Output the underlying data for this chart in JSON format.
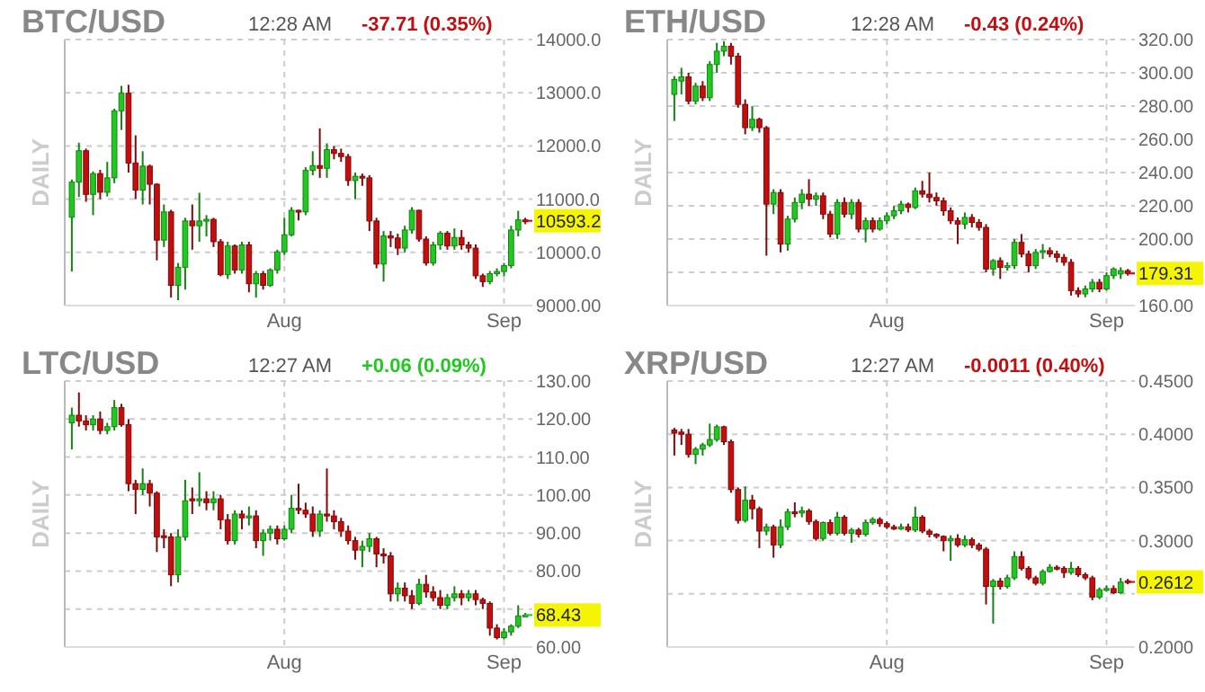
{
  "chart_data": [
    {
      "type": "candlestick",
      "title": "BTC/USD",
      "subtitle": "12:28 AM",
      "ylabel": "DAILY",
      "annotations": [
        "-37.71 (0.35%)",
        {
          "text": "10593.2",
          "x": "--09-04",
          "y": 10593.2
        }
      ],
      "grid": true,
      "x": [
        "--07-02",
        "--07-03",
        "--07-04",
        "--07-05",
        "--07-06",
        "--07-07",
        "--07-08",
        "--07-09",
        "--07-10",
        "--07-11",
        "--07-12",
        "--07-13",
        "--07-14",
        "--07-15",
        "--07-16",
        "--07-17",
        "--07-18",
        "--07-19",
        "--07-20",
        "--07-21",
        "--07-22",
        "--07-23",
        "--07-24",
        "--07-25",
        "--07-26",
        "--07-27",
        "--07-28",
        "--07-29",
        "--07-30",
        "--07-31",
        "--08-01",
        "--08-02",
        "--08-03",
        "--08-04",
        "--08-05",
        "--08-06",
        "--08-07",
        "--08-08",
        "--08-09",
        "--08-10",
        "--08-11",
        "--08-12",
        "--08-13",
        "--08-14",
        "--08-15",
        "--08-16",
        "--08-17",
        "--08-18",
        "--08-19",
        "--08-20",
        "--08-21",
        "--08-22",
        "--08-23",
        "--08-24",
        "--08-25",
        "--08-26",
        "--08-27",
        "--08-28",
        "--08-29",
        "--08-30",
        "--08-31",
        "--09-01",
        "--09-02",
        "--09-03",
        "--09-04"
      ],
      "xlim": [
        "--07-01",
        "--09-05"
      ],
      "xticks": [
        {
          "value": "--08-01",
          "label": "Aug"
        },
        {
          "value": "--09-01",
          "label": "Sep"
        }
      ],
      "ylim": [
        9000,
        14000
      ],
      "yticks": [
        {
          "value": 9000,
          "label": "9000.00"
        },
        {
          "value": 10000,
          "label": "10000.0"
        },
        {
          "value": 11000,
          "label": "11000.0"
        },
        {
          "value": 12000,
          "label": "12000.0"
        },
        {
          "value": 13000,
          "label": "13000.0"
        },
        {
          "value": 14000,
          "label": "14000.0"
        }
      ],
      "ohlc": [
        [
          10660,
          11370,
          9640,
          11320
        ],
        [
          11320,
          12060,
          11040,
          11910
        ],
        [
          11910,
          11950,
          10950,
          11090
        ],
        [
          11090,
          11520,
          10700,
          11480
        ],
        [
          11480,
          11550,
          11000,
          11130
        ],
        [
          11130,
          11700,
          11050,
          11400
        ],
        [
          11400,
          12700,
          11300,
          12660
        ],
        [
          12660,
          13130,
          12300,
          12990
        ],
        [
          12990,
          13150,
          11500,
          11680
        ],
        [
          11680,
          12200,
          11000,
          11170
        ],
        [
          11170,
          11900,
          10900,
          11620
        ],
        [
          11620,
          11650,
          10900,
          11280
        ],
        [
          11280,
          11300,
          9850,
          10230
        ],
        [
          10230,
          10900,
          10100,
          10760
        ],
        [
          10760,
          10800,
          9150,
          9380
        ],
        [
          9380,
          9800,
          9100,
          9720
        ],
        [
          9720,
          10650,
          9300,
          10590
        ],
        [
          10590,
          10900,
          10050,
          10500
        ],
        [
          10500,
          11120,
          10200,
          10590
        ],
        [
          10590,
          10700,
          10300,
          10620
        ],
        [
          10620,
          10650,
          10100,
          10200
        ],
        [
          10200,
          10250,
          9550,
          9580
        ],
        [
          9580,
          10200,
          9500,
          10120
        ],
        [
          10120,
          10150,
          9600,
          9670
        ],
        [
          9670,
          10200,
          9600,
          10140
        ],
        [
          10140,
          10200,
          9250,
          9410
        ],
        [
          9410,
          9650,
          9150,
          9600
        ],
        [
          9600,
          9650,
          9300,
          9380
        ],
        [
          9380,
          9700,
          9350,
          9670
        ],
        [
          9670,
          10050,
          9600,
          10010
        ],
        [
          10010,
          10650,
          9950,
          10330
        ],
        [
          10330,
          10850,
          10300,
          10790
        ],
        [
          10790,
          10800,
          10600,
          10760
        ],
        [
          10760,
          11600,
          10700,
          11540
        ],
        [
          11540,
          11900,
          11450,
          11630
        ],
        [
          11630,
          12330,
          11400,
          11580
        ],
        [
          11580,
          12050,
          11400,
          11930
        ],
        [
          11930,
          12000,
          11750,
          11860
        ],
        [
          11860,
          11950,
          11700,
          11800
        ],
        [
          11800,
          11850,
          11250,
          11350
        ],
        [
          11350,
          11500,
          11000,
          11430
        ],
        [
          11430,
          11480,
          11250,
          11400
        ],
        [
          11400,
          11450,
          10400,
          10590
        ],
        [
          10590,
          10650,
          9700,
          9780
        ],
        [
          9780,
          10400,
          9450,
          10310
        ],
        [
          10310,
          10400,
          10100,
          10270
        ],
        [
          10270,
          10350,
          9950,
          10080
        ],
        [
          10080,
          10500,
          10000,
          10420
        ],
        [
          10420,
          10850,
          10350,
          10790
        ],
        [
          10790,
          10800,
          10200,
          10250
        ],
        [
          10250,
          10300,
          9750,
          9800
        ],
        [
          9800,
          10200,
          9750,
          10140
        ],
        [
          10140,
          10400,
          10050,
          10360
        ],
        [
          10360,
          10400,
          10050,
          10120
        ],
        [
          10120,
          10450,
          10050,
          10280
        ],
        [
          10280,
          10420,
          10050,
          10140
        ],
        [
          10140,
          10200,
          10000,
          10080
        ],
        [
          10080,
          10150,
          9500,
          9560
        ],
        [
          9560,
          9600,
          9350,
          9450
        ],
        [
          9450,
          9650,
          9400,
          9600
        ],
        [
          9600,
          9700,
          9550,
          9640
        ],
        [
          9640,
          9800,
          9550,
          9750
        ],
        [
          9750,
          10500,
          9700,
          10420
        ],
        [
          10420,
          10780,
          10300,
          10610
        ],
        [
          10610,
          10650,
          10530,
          10593.2
        ]
      ],
      "colors": [
        "#1fc91f",
        "#1fc91f",
        "#c40e0e",
        "#1fc91f",
        "#c40e0e",
        "#1fc91f",
        "#1fc91f",
        "#1fc91f",
        "#c40e0e",
        "#c40e0e",
        "#1fc91f",
        "#c40e0e",
        "#c40e0e",
        "#1fc91f",
        "#c40e0e",
        "#1fc91f",
        "#1fc91f",
        "#c40e0e",
        "#1fc91f",
        "#1fc91f",
        "#c40e0e",
        "#c40e0e",
        "#1fc91f",
        "#c40e0e",
        "#1fc91f",
        "#c40e0e",
        "#1fc91f",
        "#c40e0e",
        "#1fc91f",
        "#1fc91f",
        "#1fc91f",
        "#1fc91f",
        "#c40e0e",
        "#1fc91f",
        "#1fc91f",
        "#c40e0e",
        "#1fc91f",
        "#c40e0e",
        "#c40e0e",
        "#c40e0e",
        "#1fc91f",
        "#c40e0e",
        "#c40e0e",
        "#c40e0e",
        "#1fc91f",
        "#c40e0e",
        "#c40e0e",
        "#1fc91f",
        "#1fc91f",
        "#c40e0e",
        "#c40e0e",
        "#1fc91f",
        "#1fc91f",
        "#c40e0e",
        "#1fc91f",
        "#c40e0e",
        "#c40e0e",
        "#c40e0e",
        "#c40e0e",
        "#1fc91f",
        "#1fc91f",
        "#1fc91f",
        "#1fc91f",
        "#1fc91f",
        "#c40e0e"
      ]
    },
    {
      "type": "candlestick",
      "title": "ETH/USD",
      "subtitle": "12:28 AM",
      "ylabel": "DAILY",
      "annotations": [
        "-0.43 (0.24%)",
        {
          "text": "179.31",
          "x": "--09-04",
          "y": 179.31
        }
      ],
      "grid": true,
      "x": [
        "--07-02",
        "--07-03",
        "--07-04",
        "--07-05",
        "--07-06",
        "--07-07",
        "--07-08",
        "--07-09",
        "--07-10",
        "--07-11",
        "--07-12",
        "--07-13",
        "--07-14",
        "--07-15",
        "--07-16",
        "--07-17",
        "--07-18",
        "--07-19",
        "--07-20",
        "--07-21",
        "--07-22",
        "--07-23",
        "--07-24",
        "--07-25",
        "--07-26",
        "--07-27",
        "--07-28",
        "--07-29",
        "--07-30",
        "--07-31",
        "--08-01",
        "--08-02",
        "--08-03",
        "--08-04",
        "--08-05",
        "--08-06",
        "--08-07",
        "--08-08",
        "--08-09",
        "--08-10",
        "--08-11",
        "--08-12",
        "--08-13",
        "--08-14",
        "--08-15",
        "--08-16",
        "--08-17",
        "--08-18",
        "--08-19",
        "--08-20",
        "--08-21",
        "--08-22",
        "--08-23",
        "--08-24",
        "--08-25",
        "--08-26",
        "--08-27",
        "--08-28",
        "--08-29",
        "--08-30",
        "--08-31",
        "--09-01",
        "--09-02",
        "--09-03",
        "--09-04"
      ],
      "xlim": [
        "--07-01",
        "--09-05"
      ],
      "xticks": [
        {
          "value": "--08-01",
          "label": "Aug"
        },
        {
          "value": "--09-01",
          "label": "Sep"
        }
      ],
      "ylim": [
        160,
        320
      ],
      "yticks": [
        {
          "value": 160,
          "label": "160.00"
        },
        {
          "value": 180,
          "label": null
        },
        {
          "value": 200,
          "label": "200.00"
        },
        {
          "value": 220,
          "label": "220.00"
        },
        {
          "value": 240,
          "label": "240.00"
        },
        {
          "value": 260,
          "label": "260.00"
        },
        {
          "value": 280,
          "label": "280.00"
        },
        {
          "value": 300,
          "label": "300.00"
        },
        {
          "value": 320,
          "label": "320.00"
        }
      ],
      "ohlc": [
        [
          287,
          298,
          271,
          296
        ],
        [
          295,
          303,
          287,
          297.5
        ],
        [
          297.5,
          300,
          281,
          283
        ],
        [
          283,
          294,
          281,
          292
        ],
        [
          292,
          295,
          283,
          285
        ],
        [
          285,
          307,
          283,
          305
        ],
        [
          305,
          318,
          300,
          313
        ],
        [
          313,
          319,
          310,
          316
        ],
        [
          316,
          318,
          305,
          310
        ],
        [
          310,
          312,
          279,
          281
        ],
        [
          281,
          284,
          263,
          267
        ],
        [
          267,
          280,
          265,
          272
        ],
        [
          272,
          273,
          264,
          267
        ],
        [
          267,
          268,
          190,
          221
        ],
        [
          221,
          230,
          215,
          228
        ],
        [
          228,
          230,
          192,
          197
        ],
        [
          197,
          214,
          193,
          212
        ],
        [
          212,
          225,
          210,
          222
        ],
        [
          222,
          230,
          218,
          227
        ],
        [
          227,
          236,
          220,
          224
        ],
        [
          224,
          228,
          220,
          226
        ],
        [
          226,
          228,
          212,
          215
        ],
        [
          215,
          217,
          201,
          203
        ],
        [
          203,
          224,
          200,
          222
        ],
        [
          222,
          225,
          213,
          215
        ],
        [
          215,
          224,
          212,
          222
        ],
        [
          222,
          224,
          204,
          206
        ],
        [
          206,
          213,
          198,
          211
        ],
        [
          211,
          213,
          204,
          206
        ],
        [
          206,
          213,
          205,
          211
        ],
        [
          211,
          216,
          209,
          214
        ],
        [
          214,
          220,
          212,
          217
        ],
        [
          217,
          223,
          215,
          221
        ],
        [
          221,
          222,
          216,
          219
        ],
        [
          219,
          231,
          218,
          229
        ],
        [
          229,
          235,
          225,
          227
        ],
        [
          227,
          240,
          222,
          225
        ],
        [
          225,
          228,
          220,
          223
        ],
        [
          223,
          225,
          214,
          217
        ],
        [
          217,
          219,
          209,
          211
        ],
        [
          211,
          213,
          197,
          209
        ],
        [
          209,
          216,
          206,
          213
        ],
        [
          213,
          215,
          207,
          210
        ],
        [
          210,
          212,
          205,
          207
        ],
        [
          207,
          209,
          180,
          182
        ],
        [
          182,
          188,
          178,
          187
        ],
        [
          187,
          189,
          176,
          183
        ],
        [
          183,
          186,
          181,
          184
        ],
        [
          184,
          200,
          182,
          198
        ],
        [
          198,
          203,
          189,
          191
        ],
        [
          191,
          193,
          180,
          184
        ],
        [
          184,
          194,
          182,
          192
        ],
        [
          192,
          197,
          188,
          193
        ],
        [
          193,
          195,
          189,
          191
        ],
        [
          191,
          193,
          186,
          189
        ],
        [
          189,
          191,
          184,
          186
        ],
        [
          186,
          188,
          166,
          169
        ],
        [
          169,
          171,
          165,
          167
        ],
        [
          167,
          172,
          165,
          170
        ],
        [
          170,
          176,
          168,
          174
        ],
        [
          174,
          176,
          168,
          170
        ],
        [
          170,
          180,
          169,
          178
        ],
        [
          178,
          183,
          176,
          182
        ],
        [
          179,
          183,
          176,
          181
        ],
        [
          181,
          182,
          178,
          179.31
        ]
      ],
      "colors": [
        "#1fc91f",
        "#1fc91f",
        "#c40e0e",
        "#1fc91f",
        "#c40e0e",
        "#1fc91f",
        "#1fc91f",
        "#1fc91f",
        "#c40e0e",
        "#c40e0e",
        "#c40e0e",
        "#1fc91f",
        "#c40e0e",
        "#c40e0e",
        "#1fc91f",
        "#c40e0e",
        "#1fc91f",
        "#1fc91f",
        "#1fc91f",
        "#c40e0e",
        "#1fc91f",
        "#c40e0e",
        "#c40e0e",
        "#1fc91f",
        "#c40e0e",
        "#1fc91f",
        "#c40e0e",
        "#1fc91f",
        "#c40e0e",
        "#1fc91f",
        "#1fc91f",
        "#1fc91f",
        "#1fc91f",
        "#c40e0e",
        "#1fc91f",
        "#c40e0e",
        "#c40e0e",
        "#c40e0e",
        "#c40e0e",
        "#c40e0e",
        "#c40e0e",
        "#1fc91f",
        "#c40e0e",
        "#c40e0e",
        "#c40e0e",
        "#1fc91f",
        "#c40e0e",
        "#1fc91f",
        "#1fc91f",
        "#c40e0e",
        "#c40e0e",
        "#1fc91f",
        "#1fc91f",
        "#c40e0e",
        "#c40e0e",
        "#c40e0e",
        "#c40e0e",
        "#c40e0e",
        "#1fc91f",
        "#1fc91f",
        "#c40e0e",
        "#1fc91f",
        "#1fc91f",
        "#1fc91f",
        "#c40e0e"
      ]
    },
    {
      "type": "candlestick",
      "title": "LTC/USD",
      "subtitle": "12:27 AM",
      "ylabel": "DAILY",
      "annotations": [
        "+0.06 (0.09%)",
        {
          "text": "68.43",
          "x": "--09-04",
          "y": 68.43
        }
      ],
      "grid": true,
      "x": [
        "--07-02",
        "--07-03",
        "--07-04",
        "--07-05",
        "--07-06",
        "--07-07",
        "--07-08",
        "--07-09",
        "--07-10",
        "--07-11",
        "--07-12",
        "--07-13",
        "--07-14",
        "--07-15",
        "--07-16",
        "--07-17",
        "--07-18",
        "--07-19",
        "--07-20",
        "--07-21",
        "--07-22",
        "--07-23",
        "--07-24",
        "--07-25",
        "--07-26",
        "--07-27",
        "--07-28",
        "--07-29",
        "--07-30",
        "--07-31",
        "--08-01",
        "--08-02",
        "--08-03",
        "--08-04",
        "--08-05",
        "--08-06",
        "--08-07",
        "--08-08",
        "--08-09",
        "--08-10",
        "--08-11",
        "--08-12",
        "--08-13",
        "--08-14",
        "--08-15",
        "--08-16",
        "--08-17",
        "--08-18",
        "--08-19",
        "--08-20",
        "--08-21",
        "--08-22",
        "--08-23",
        "--08-24",
        "--08-25",
        "--08-26",
        "--08-27",
        "--08-28",
        "--08-29",
        "--08-30",
        "--08-31",
        "--09-01",
        "--09-02",
        "--09-03",
        "--09-04"
      ],
      "xlim": [
        "--07-01",
        "--09-05"
      ],
      "xticks": [
        {
          "value": "--08-01",
          "label": "Aug"
        },
        {
          "value": "--09-01",
          "label": "Sep"
        }
      ],
      "ylim": [
        60,
        130
      ],
      "yticks": [
        {
          "value": 60,
          "label": "60.00"
        },
        {
          "value": 70,
          "label": null
        },
        {
          "value": 80,
          "label": "80.00"
        },
        {
          "value": 90,
          "label": "90.00"
        },
        {
          "value": 100,
          "label": "100.00"
        },
        {
          "value": 110,
          "label": "110.00"
        },
        {
          "value": 120,
          "label": "120.00"
        },
        {
          "value": 130,
          "label": "130.00"
        }
      ],
      "ohlc": [
        [
          119,
          123,
          112,
          121
        ],
        [
          121,
          127,
          118,
          119.5
        ],
        [
          119.5,
          121,
          117,
          118.5
        ],
        [
          118.5,
          121,
          117,
          120
        ],
        [
          120,
          122,
          116,
          117
        ],
        [
          117,
          119,
          116,
          118
        ],
        [
          118,
          125,
          117,
          123
        ],
        [
          123,
          124,
          118,
          118.5
        ],
        [
          118.5,
          120,
          101,
          103
        ],
        [
          103,
          104,
          95,
          101.5
        ],
        [
          101.5,
          107,
          100,
          103
        ],
        [
          103,
          104,
          97,
          100.5
        ],
        [
          100.5,
          101,
          85,
          89
        ],
        [
          89.3,
          91,
          86,
          88.8
        ],
        [
          89,
          90,
          76,
          79
        ],
        [
          79,
          91,
          77,
          89
        ],
        [
          89,
          104,
          88,
          98.5
        ],
        [
          99,
          102,
          95,
          98.5
        ],
        [
          98.5,
          106,
          97,
          99
        ],
        [
          99,
          101,
          96,
          98
        ],
        [
          98,
          101,
          96,
          99
        ],
        [
          99,
          100,
          91,
          93.5
        ],
        [
          93.5,
          95,
          87,
          88
        ],
        [
          88,
          96,
          87,
          95
        ],
        [
          95,
          96,
          91,
          94
        ],
        [
          94,
          97,
          92,
          94.5
        ],
        [
          94.5,
          96,
          86,
          88
        ],
        [
          88,
          91,
          84,
          90
        ],
        [
          90,
          92,
          88,
          91
        ],
        [
          91,
          92,
          87,
          88.5
        ],
        [
          88.5,
          92,
          88,
          91
        ],
        [
          91,
          100,
          90,
          96.5
        ],
        [
          96.5,
          103,
          95,
          96
        ],
        [
          96,
          98,
          94,
          95
        ],
        [
          95,
          97,
          89,
          90.5
        ],
        [
          90.5,
          96,
          89,
          95
        ],
        [
          95,
          107,
          93,
          94.5
        ],
        [
          94.5,
          96,
          91,
          93
        ],
        [
          93,
          94,
          89,
          90.5
        ],
        [
          90.5,
          92,
          87,
          88
        ],
        [
          88,
          89,
          83,
          85.5
        ],
        [
          85.5,
          88,
          81,
          86.5
        ],
        [
          86.5,
          90,
          85,
          88.5
        ],
        [
          88.5,
          89,
          81,
          84.5
        ],
        [
          84.5,
          86,
          82,
          84
        ],
        [
          84,
          85,
          72,
          74
        ],
        [
          74,
          77,
          72,
          75.5
        ],
        [
          75.5,
          77,
          72,
          73.5
        ],
        [
          73.5,
          75,
          70,
          71.5
        ],
        [
          71.5,
          78,
          71,
          76.5
        ],
        [
          76.5,
          79,
          73,
          74.5
        ],
        [
          74.5,
          76,
          72,
          73
        ],
        [
          73,
          75,
          70,
          71
        ],
        [
          71,
          74,
          70,
          73
        ],
        [
          73,
          76,
          72,
          74
        ],
        [
          74,
          75,
          71,
          73
        ],
        [
          73,
          75,
          72,
          74
        ],
        [
          74,
          75,
          71,
          72.5
        ],
        [
          72.5,
          73,
          70,
          71.5
        ],
        [
          71.5,
          72,
          63,
          65
        ],
        [
          65,
          66,
          62,
          62.5
        ],
        [
          62.5,
          65,
          62,
          64
        ],
        [
          64,
          66,
          63,
          65.5
        ],
        [
          65.5,
          71,
          65,
          68.2
        ],
        [
          68.37,
          69,
          68,
          68.43
        ]
      ],
      "colors": [
        "#1fc91f",
        "#c40e0e",
        "#c40e0e",
        "#1fc91f",
        "#c40e0e",
        "#1fc91f",
        "#1fc91f",
        "#c40e0e",
        "#c40e0e",
        "#c40e0e",
        "#1fc91f",
        "#c40e0e",
        "#c40e0e",
        "#c40e0e",
        "#c40e0e",
        "#1fc91f",
        "#1fc91f",
        "#c40e0e",
        "#1fc91f",
        "#c40e0e",
        "#1fc91f",
        "#c40e0e",
        "#c40e0e",
        "#1fc91f",
        "#c40e0e",
        "#1fc91f",
        "#c40e0e",
        "#1fc91f",
        "#1fc91f",
        "#c40e0e",
        "#1fc91f",
        "#1fc91f",
        "#c40e0e",
        "#c40e0e",
        "#c40e0e",
        "#1fc91f",
        "#c40e0e",
        "#c40e0e",
        "#c40e0e",
        "#c40e0e",
        "#c40e0e",
        "#1fc91f",
        "#1fc91f",
        "#c40e0e",
        "#c40e0e",
        "#c40e0e",
        "#1fc91f",
        "#c40e0e",
        "#c40e0e",
        "#1fc91f",
        "#c40e0e",
        "#c40e0e",
        "#c40e0e",
        "#1fc91f",
        "#1fc91f",
        "#c40e0e",
        "#1fc91f",
        "#c40e0e",
        "#c40e0e",
        "#c40e0e",
        "#c40e0e",
        "#1fc91f",
        "#1fc91f",
        "#1fc91f",
        "#1fc91f"
      ]
    },
    {
      "type": "candlestick",
      "title": "XRP/USD",
      "subtitle": "12:27 AM",
      "ylabel": "DAILY",
      "annotations": [
        "-0.0011 (0.40%)",
        {
          "text": "0.2612",
          "x": "--09-04",
          "y": 0.2612
        }
      ],
      "grid": true,
      "x": [
        "--07-02",
        "--07-03",
        "--07-04",
        "--07-05",
        "--07-06",
        "--07-07",
        "--07-08",
        "--07-09",
        "--07-10",
        "--07-11",
        "--07-12",
        "--07-13",
        "--07-14",
        "--07-15",
        "--07-16",
        "--07-17",
        "--07-18",
        "--07-19",
        "--07-20",
        "--07-21",
        "--07-22",
        "--07-23",
        "--07-24",
        "--07-25",
        "--07-26",
        "--07-27",
        "--07-28",
        "--07-29",
        "--07-30",
        "--07-31",
        "--08-01",
        "--08-02",
        "--08-03",
        "--08-04",
        "--08-05",
        "--08-06",
        "--08-07",
        "--08-08",
        "--08-09",
        "--08-10",
        "--08-11",
        "--08-12",
        "--08-13",
        "--08-14",
        "--08-15",
        "--08-16",
        "--08-17",
        "--08-18",
        "--08-19",
        "--08-20",
        "--08-21",
        "--08-22",
        "--08-23",
        "--08-24",
        "--08-25",
        "--08-26",
        "--08-27",
        "--08-28",
        "--08-29",
        "--08-30",
        "--08-31",
        "--09-01",
        "--09-02",
        "--09-03",
        "--09-04"
      ],
      "xlim": [
        "--07-01",
        "--09-05"
      ],
      "xticks": [
        {
          "value": "--08-01",
          "label": "Aug"
        },
        {
          "value": "--09-01",
          "label": "Sep"
        }
      ],
      "ylim": [
        0.2,
        0.45
      ],
      "yticks": [
        {
          "value": 0.2,
          "label": "0.2000"
        },
        {
          "value": 0.25,
          "label": null
        },
        {
          "value": 0.3,
          "label": "0.3000"
        },
        {
          "value": 0.35,
          "label": "0.3500"
        },
        {
          "value": 0.4,
          "label": "0.4000"
        },
        {
          "value": 0.45,
          "label": "0.4500"
        }
      ],
      "ohlc": [
        [
          0.404,
          0.406,
          0.38,
          0.401
        ],
        [
          0.402,
          0.405,
          0.39,
          0.4
        ],
        [
          0.4,
          0.405,
          0.378,
          0.381
        ],
        [
          0.381,
          0.388,
          0.372,
          0.386
        ],
        [
          0.386,
          0.392,
          0.38,
          0.39
        ],
        [
          0.39,
          0.41,
          0.388,
          0.395
        ],
        [
          0.395,
          0.409,
          0.393,
          0.407
        ],
        [
          0.407,
          0.408,
          0.39,
          0.393
        ],
        [
          0.393,
          0.395,
          0.345,
          0.348
        ],
        [
          0.348,
          0.35,
          0.316,
          0.319
        ],
        [
          0.319,
          0.351,
          0.317,
          0.338
        ],
        [
          0.338,
          0.343,
          0.32,
          0.33
        ],
        [
          0.33,
          0.332,
          0.293,
          0.309
        ],
        [
          0.309,
          0.316,
          0.305,
          0.313
        ],
        [
          0.313,
          0.315,
          0.284,
          0.296
        ],
        [
          0.296,
          0.32,
          0.293,
          0.313
        ],
        [
          0.313,
          0.33,
          0.31,
          0.327
        ],
        [
          0.327,
          0.336,
          0.322,
          0.326
        ],
        [
          0.326,
          0.332,
          0.322,
          0.328
        ],
        [
          0.328,
          0.33,
          0.315,
          0.318
        ],
        [
          0.318,
          0.32,
          0.3,
          0.302
        ],
        [
          0.302,
          0.318,
          0.3,
          0.317
        ],
        [
          0.317,
          0.32,
          0.305,
          0.307
        ],
        [
          0.307,
          0.327,
          0.305,
          0.322
        ],
        [
          0.322,
          0.324,
          0.305,
          0.307
        ],
        [
          0.307,
          0.312,
          0.298,
          0.31
        ],
        [
          0.31,
          0.312,
          0.303,
          0.306
        ],
        [
          0.306,
          0.32,
          0.304,
          0.317
        ],
        [
          0.317,
          0.322,
          0.315,
          0.32
        ],
        [
          0.32,
          0.322,
          0.313,
          0.316
        ],
        [
          0.316,
          0.318,
          0.311,
          0.313
        ],
        [
          0.313,
          0.315,
          0.31,
          0.311
        ],
        [
          0.311,
          0.316,
          0.31,
          0.313
        ],
        [
          0.313,
          0.316,
          0.308,
          0.31
        ],
        [
          0.31,
          0.332,
          0.308,
          0.322
        ],
        [
          0.322,
          0.324,
          0.307,
          0.309
        ],
        [
          0.309,
          0.311,
          0.303,
          0.306
        ],
        [
          0.306,
          0.307,
          0.302,
          0.304
        ],
        [
          0.304,
          0.305,
          0.29,
          0.3
        ],
        [
          0.3,
          0.305,
          0.281,
          0.302
        ],
        [
          0.302,
          0.306,
          0.294,
          0.296
        ],
        [
          0.296,
          0.305,
          0.294,
          0.301
        ],
        [
          0.301,
          0.303,
          0.293,
          0.296
        ],
        [
          0.296,
          0.298,
          0.29,
          0.292
        ],
        [
          0.292,
          0.294,
          0.24,
          0.257
        ],
        [
          0.257,
          0.264,
          0.222,
          0.262
        ],
        [
          0.262,
          0.265,
          0.254,
          0.257
        ],
        [
          0.257,
          0.268,
          0.255,
          0.265
        ],
        [
          0.265,
          0.29,
          0.263,
          0.285
        ],
        [
          0.285,
          0.29,
          0.272,
          0.274
        ],
        [
          0.274,
          0.276,
          0.263,
          0.265
        ],
        [
          0.265,
          0.267,
          0.258,
          0.26
        ],
        [
          0.26,
          0.273,
          0.258,
          0.271
        ],
        [
          0.271,
          0.278,
          0.27,
          0.275
        ],
        [
          0.275,
          0.277,
          0.272,
          0.274
        ],
        [
          0.274,
          0.276,
          0.265,
          0.27
        ],
        [
          0.27,
          0.28,
          0.268,
          0.274
        ],
        [
          0.274,
          0.276,
          0.266,
          0.268
        ],
        [
          0.268,
          0.27,
          0.263,
          0.265
        ],
        [
          0.265,
          0.267,
          0.244,
          0.247
        ],
        [
          0.247,
          0.256,
          0.245,
          0.254
        ],
        [
          0.254,
          0.258,
          0.252,
          0.255
        ],
        [
          0.255,
          0.258,
          0.25,
          0.251
        ],
        [
          0.251,
          0.265,
          0.25,
          0.261
        ],
        [
          0.2623,
          0.264,
          0.259,
          0.2612
        ]
      ],
      "colors": [
        "#c40e0e",
        "#c40e0e",
        "#c40e0e",
        "#1fc91f",
        "#1fc91f",
        "#1fc91f",
        "#1fc91f",
        "#c40e0e",
        "#c40e0e",
        "#c40e0e",
        "#1fc91f",
        "#c40e0e",
        "#c40e0e",
        "#1fc91f",
        "#c40e0e",
        "#1fc91f",
        "#1fc91f",
        "#c40e0e",
        "#1fc91f",
        "#c40e0e",
        "#c40e0e",
        "#1fc91f",
        "#c40e0e",
        "#1fc91f",
        "#c40e0e",
        "#1fc91f",
        "#c40e0e",
        "#1fc91f",
        "#1fc91f",
        "#c40e0e",
        "#c40e0e",
        "#c40e0e",
        "#1fc91f",
        "#c40e0e",
        "#1fc91f",
        "#c40e0e",
        "#c40e0e",
        "#c40e0e",
        "#c40e0e",
        "#1fc91f",
        "#c40e0e",
        "#1fc91f",
        "#c40e0e",
        "#c40e0e",
        "#c40e0e",
        "#1fc91f",
        "#c40e0e",
        "#1fc91f",
        "#1fc91f",
        "#c40e0e",
        "#c40e0e",
        "#c40e0e",
        "#1fc91f",
        "#1fc91f",
        "#c40e0e",
        "#c40e0e",
        "#1fc91f",
        "#c40e0e",
        "#c40e0e",
        "#c40e0e",
        "#1fc91f",
        "#1fc91f",
        "#c40e0e",
        "#1fc91f",
        "#c40e0e"
      ]
    }
  ]
}
